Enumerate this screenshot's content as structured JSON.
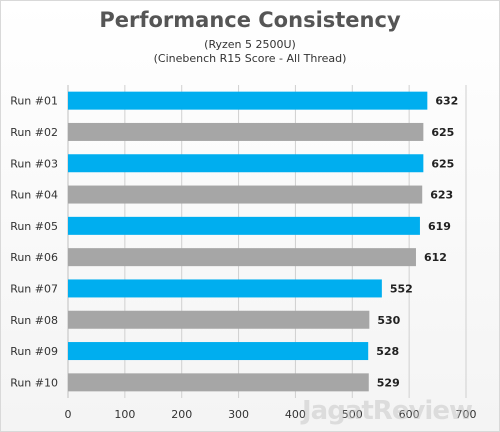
{
  "chart_data": {
    "type": "bar",
    "orientation": "horizontal",
    "title": "Performance Consistency",
    "subtitle_lines": [
      "(Ryzen 5 2500U)",
      "(Cinebench R15 Score - All Thread)"
    ],
    "categories": [
      "Run #01",
      "Run #02",
      "Run #03",
      "Run #04",
      "Run #05",
      "Run #06",
      "Run #07",
      "Run #08",
      "Run #09",
      "Run #10"
    ],
    "values": [
      632,
      625,
      625,
      623,
      619,
      612,
      552,
      530,
      528,
      529
    ],
    "xlim": [
      0,
      700
    ],
    "xticks": [
      0,
      100,
      200,
      300,
      400,
      500,
      600,
      700
    ],
    "grid": true,
    "legend": "none",
    "colors": {
      "odd": "#00aeef",
      "even": "#a6a6a6"
    }
  },
  "watermark": "JagatReview"
}
